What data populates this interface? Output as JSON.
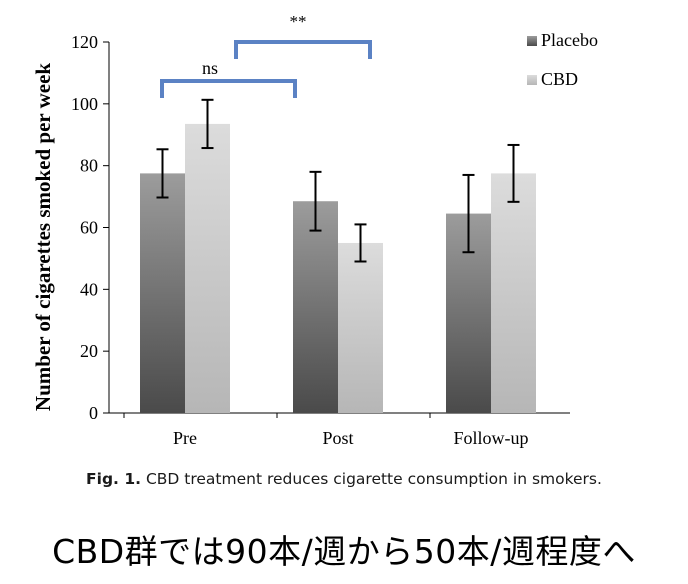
{
  "chart_data": {
    "type": "bar",
    "categories": [
      "Pre",
      "Post",
      "Follow-up"
    ],
    "series": [
      {
        "name": "Placebo",
        "values": [
          77.5,
          68.5,
          64.5
        ],
        "errors": [
          7.8,
          9.5,
          12.5
        ],
        "color": "#707070"
      },
      {
        "name": "CBD",
        "values": [
          93.5,
          55.0,
          77.5
        ],
        "errors": [
          7.8,
          6.0,
          9.2
        ],
        "color": "#cfcfcf"
      }
    ],
    "xlabel": "",
    "ylabel": "Number of cigarettes smoked per week",
    "ylim": [
      0,
      120
    ],
    "yticks": [
      "0",
      "20",
      "40",
      "60",
      "80",
      "100",
      "120"
    ],
    "legend_position": "top-right",
    "annotations": [
      {
        "label": "ns",
        "from": "Pre",
        "to": "Post",
        "color": "#5b82c4"
      },
      {
        "label": "**",
        "from": "Pre-CBD",
        "to": "Post-CBD",
        "color": "#5b82c4"
      }
    ]
  },
  "caption": {
    "fig_label": "Fig. 1.",
    "text": "CBD treatment reduces cigarette consumption in smokers."
  },
  "note": "CBD群では90本/週から50本/週程度へ"
}
